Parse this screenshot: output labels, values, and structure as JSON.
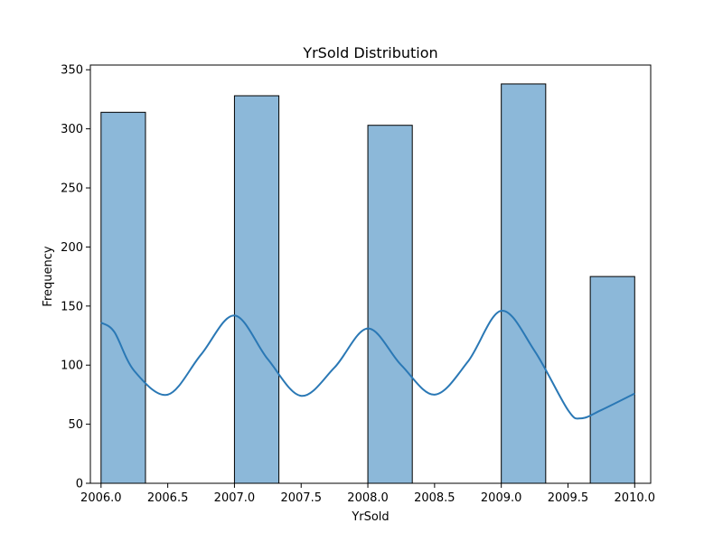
{
  "chart_data": {
    "type": "bar",
    "title": "YrSold Distribution",
    "xlabel": "YrSold",
    "ylabel": "Frequency",
    "xlim": [
      2005.92,
      2010.12
    ],
    "ylim": [
      0,
      354
    ],
    "x_ticks": [
      "2006.0",
      "2006.5",
      "2007.0",
      "2007.5",
      "2008.0",
      "2008.5",
      "2009.0",
      "2009.5",
      "2010.0"
    ],
    "y_ticks": [
      "0",
      "50",
      "100",
      "150",
      "200",
      "250",
      "300",
      "350"
    ],
    "bins": [
      {
        "x0": 2006.0,
        "x1": 2006.333,
        "value": 314
      },
      {
        "x0": 2007.0,
        "x1": 2007.333,
        "value": 328
      },
      {
        "x0": 2008.0,
        "x1": 2008.333,
        "value": 303
      },
      {
        "x0": 2009.0,
        "x1": 2009.333,
        "value": 338
      },
      {
        "x0": 2009.667,
        "x1": 2010.0,
        "value": 175
      }
    ],
    "kde": {
      "x": [
        2006.0,
        2006.1,
        2006.25,
        2006.5,
        2006.75,
        2007.0,
        2007.25,
        2007.5,
        2007.75,
        2008.0,
        2008.25,
        2008.5,
        2008.75,
        2009.0,
        2009.25,
        2009.5,
        2009.6,
        2009.75,
        2010.0
      ],
      "y": [
        136,
        128,
        95,
        75,
        109,
        142,
        105,
        74,
        98,
        131,
        100,
        75,
        103,
        146,
        112,
        62,
        55,
        62,
        76
      ]
    },
    "grid": false,
    "colors": {
      "bar_fill": "#8cb8d9",
      "bar_edge": "#000000",
      "kde_line": "#2a78b5"
    }
  }
}
